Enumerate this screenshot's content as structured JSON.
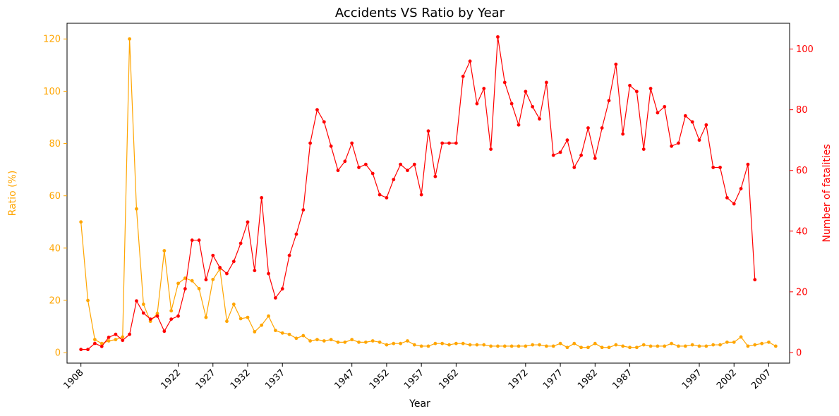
{
  "chart_data": {
    "type": "line",
    "title": "Accidents VS Ratio by Year",
    "xlabel": "Year",
    "ylabel_left": "Ratio (%)",
    "ylabel_right": "Number of fatalities",
    "xlim": [
      1906,
      2010
    ],
    "ylim_left": [
      -4,
      126
    ],
    "ylim_right": [
      -3.5,
      108.5
    ],
    "x_ticks": [
      "1908",
      "1922",
      "1927",
      "1932",
      "1937",
      "1947",
      "1952",
      "1957",
      "1962",
      "1972",
      "1977",
      "1982",
      "1987",
      "1997",
      "2002",
      "2007"
    ],
    "y_ticks_left": [
      "0",
      "20",
      "40",
      "60",
      "80",
      "100",
      "120"
    ],
    "y_ticks_right": [
      "0",
      "20",
      "40",
      "60",
      "80",
      "100"
    ],
    "grid": false,
    "colors": {
      "ratio": "#ffa500",
      "fatalities": "#ff0000",
      "axis": "#000000"
    },
    "series": [
      {
        "axis": "left",
        "points": [
          [
            1908,
            50
          ],
          [
            1909,
            20
          ],
          [
            1910,
            5
          ],
          [
            1911,
            3.5
          ],
          [
            1912,
            4.5
          ],
          [
            1913,
            5
          ],
          [
            1914,
            6
          ],
          [
            1915,
            120
          ],
          [
            1916,
            55
          ],
          [
            1917,
            18.5
          ],
          [
            1918,
            12
          ],
          [
            1919,
            15
          ],
          [
            1920,
            39
          ],
          [
            1921,
            16
          ],
          [
            1922,
            26.5
          ],
          [
            1923,
            28.5
          ],
          [
            1924,
            27.5
          ],
          [
            1925,
            24.5
          ],
          [
            1926,
            13.5
          ],
          [
            1927,
            28
          ],
          [
            1928,
            32
          ],
          [
            1929,
            12
          ],
          [
            1930,
            18.5
          ],
          [
            1931,
            13
          ],
          [
            1932,
            13.5
          ],
          [
            1933,
            8
          ],
          [
            1934,
            10.5
          ],
          [
            1935,
            14
          ],
          [
            1936,
            8.5
          ],
          [
            1937,
            7.5
          ],
          [
            1938,
            7
          ],
          [
            1939,
            5.5
          ],
          [
            1940,
            6.5
          ],
          [
            1941,
            4.5
          ],
          [
            1942,
            5
          ],
          [
            1943,
            4.5
          ],
          [
            1944,
            5
          ],
          [
            1945,
            4
          ],
          [
            1946,
            4
          ],
          [
            1947,
            5
          ],
          [
            1948,
            4
          ],
          [
            1949,
            4
          ],
          [
            1950,
            4.5
          ],
          [
            1951,
            4
          ],
          [
            1952,
            3
          ],
          [
            1953,
            3.5
          ],
          [
            1954,
            3.5
          ],
          [
            1955,
            4.5
          ],
          [
            1956,
            3
          ],
          [
            1957,
            2.5
          ],
          [
            1958,
            2.5
          ],
          [
            1959,
            3.5
          ],
          [
            1960,
            3.5
          ],
          [
            1961,
            3
          ],
          [
            1962,
            3.5
          ],
          [
            1963,
            3.5
          ],
          [
            1964,
            3
          ],
          [
            1965,
            3
          ],
          [
            1966,
            3
          ],
          [
            1967,
            2.5
          ],
          [
            1968,
            2.5
          ],
          [
            1969,
            2.5
          ],
          [
            1970,
            2.5
          ],
          [
            1971,
            2.5
          ],
          [
            1972,
            2.5
          ],
          [
            1973,
            3
          ],
          [
            1974,
            3
          ],
          [
            1975,
            2.5
          ],
          [
            1976,
            2.5
          ],
          [
            1977,
            3.5
          ],
          [
            1978,
            2
          ],
          [
            1979,
            3.5
          ],
          [
            1980,
            2
          ],
          [
            1981,
            2
          ],
          [
            1982,
            3.5
          ],
          [
            1983,
            2
          ],
          [
            1984,
            2
          ],
          [
            1985,
            3
          ],
          [
            1986,
            2.5
          ],
          [
            1987,
            2
          ],
          [
            1988,
            2
          ],
          [
            1989,
            3
          ],
          [
            1990,
            2.5
          ],
          [
            1991,
            2.5
          ],
          [
            1992,
            2.5
          ],
          [
            1993,
            3.5
          ],
          [
            1994,
            2.5
          ],
          [
            1995,
            2.5
          ],
          [
            1996,
            3
          ],
          [
            1997,
            2.5
          ],
          [
            1998,
            2.5
          ],
          [
            1999,
            3
          ],
          [
            2000,
            3
          ],
          [
            2001,
            4
          ],
          [
            2002,
            4
          ],
          [
            2003,
            6
          ],
          [
            2004,
            2.5
          ],
          [
            2005,
            3
          ],
          [
            2006,
            3.5
          ],
          [
            2007,
            4
          ],
          [
            2008,
            2.5
          ]
        ]
      },
      {
        "axis": "right",
        "points": [
          [
            1908,
            1
          ],
          [
            1909,
            1
          ],
          [
            1910,
            3
          ],
          [
            1911,
            2
          ],
          [
            1912,
            5
          ],
          [
            1913,
            6
          ],
          [
            1914,
            4
          ],
          [
            1915,
            6
          ],
          [
            1916,
            17
          ],
          [
            1917,
            13
          ],
          [
            1918,
            11
          ],
          [
            1919,
            12
          ],
          [
            1920,
            7
          ],
          [
            1921,
            11
          ],
          [
            1922,
            12
          ],
          [
            1923,
            21
          ],
          [
            1924,
            37
          ],
          [
            1925,
            37
          ],
          [
            1926,
            24
          ],
          [
            1927,
            32
          ],
          [
            1928,
            28
          ],
          [
            1929,
            26
          ],
          [
            1930,
            30
          ],
          [
            1931,
            36
          ],
          [
            1932,
            43
          ],
          [
            1933,
            27
          ],
          [
            1934,
            51
          ],
          [
            1935,
            26
          ],
          [
            1936,
            18
          ],
          [
            1937,
            21
          ],
          [
            1938,
            32
          ],
          [
            1939,
            39
          ],
          [
            1940,
            47
          ],
          [
            1941,
            69
          ],
          [
            1942,
            80
          ],
          [
            1943,
            76
          ],
          [
            1944,
            68
          ],
          [
            1945,
            60
          ],
          [
            1946,
            63
          ],
          [
            1947,
            69
          ],
          [
            1948,
            61
          ],
          [
            1949,
            62
          ],
          [
            1950,
            59
          ],
          [
            1951,
            52
          ],
          [
            1952,
            51
          ],
          [
            1953,
            57
          ],
          [
            1954,
            62
          ],
          [
            1955,
            60
          ],
          [
            1956,
            62
          ],
          [
            1957,
            52
          ],
          [
            1958,
            73
          ],
          [
            1959,
            58
          ],
          [
            1960,
            69
          ],
          [
            1961,
            69
          ],
          [
            1962,
            69
          ],
          [
            1963,
            91
          ],
          [
            1964,
            96
          ],
          [
            1965,
            82
          ],
          [
            1966,
            87
          ],
          [
            1967,
            67
          ],
          [
            1968,
            104
          ],
          [
            1969,
            89
          ],
          [
            1970,
            82
          ],
          [
            1971,
            75
          ],
          [
            1972,
            86
          ],
          [
            1973,
            81
          ],
          [
            1974,
            77
          ],
          [
            1975,
            89
          ],
          [
            1976,
            65
          ],
          [
            1977,
            66
          ],
          [
            1978,
            70
          ],
          [
            1979,
            61
          ],
          [
            1980,
            65
          ],
          [
            1981,
            74
          ],
          [
            1982,
            64
          ],
          [
            1983,
            74
          ],
          [
            1984,
            83
          ],
          [
            1985,
            95
          ],
          [
            1986,
            72
          ],
          [
            1987,
            88
          ],
          [
            1988,
            86
          ],
          [
            1989,
            67
          ],
          [
            1990,
            87
          ],
          [
            1991,
            79
          ],
          [
            1992,
            81
          ],
          [
            1993,
            68
          ],
          [
            1994,
            69
          ],
          [
            1995,
            78
          ],
          [
            1996,
            76
          ],
          [
            1997,
            70
          ],
          [
            1998,
            75
          ],
          [
            1999,
            61
          ],
          [
            2000,
            61
          ],
          [
            2001,
            51
          ],
          [
            2002,
            49
          ],
          [
            2003,
            54
          ],
          [
            2004,
            62
          ],
          [
            2005,
            24
          ]
        ]
      }
    ]
  }
}
